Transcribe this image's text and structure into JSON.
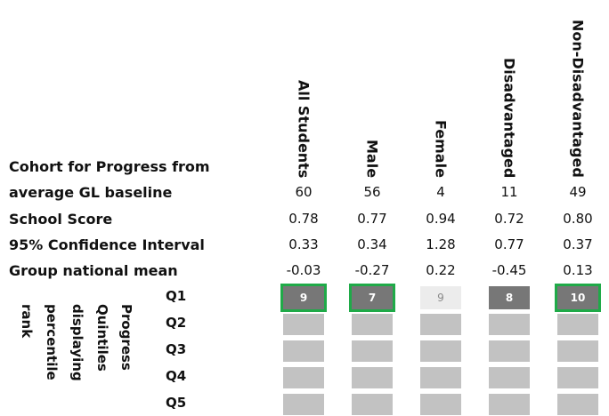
{
  "columns": [
    {
      "key": "all",
      "header": "All Students",
      "cohort": "60",
      "score": "0.78",
      "ci": "0.33",
      "mean": "-0.03",
      "rank": "9",
      "shade": "dark",
      "highlighted": true
    },
    {
      "key": "male",
      "header": "Male",
      "cohort": "56",
      "score": "0.77",
      "ci": "0.34",
      "mean": "-0.27",
      "rank": "7",
      "shade": "dark",
      "highlighted": true
    },
    {
      "key": "female",
      "header": "Female",
      "cohort": "4",
      "score": "0.94",
      "ci": "1.28",
      "mean": "0.22",
      "rank": "9",
      "shade": "light",
      "highlighted": false
    },
    {
      "key": "dis",
      "header": "Disadvantaged",
      "cohort": "11",
      "score": "0.72",
      "ci": "0.77",
      "mean": "-0.45",
      "rank": "8",
      "shade": "dark",
      "highlighted": false
    },
    {
      "key": "nondis",
      "header": "Non-Disadvantaged",
      "cohort": "49",
      "score": "0.80",
      "ci": "0.37",
      "mean": "0.13",
      "rank": "10",
      "shade": "dark",
      "highlighted": true
    }
  ],
  "row_labels": {
    "cohort_line1": "Cohort for Progress from",
    "cohort_line2": "average GL baseline",
    "score": "School Score",
    "ci": "95% Confidence Interval",
    "mean": "Group national mean"
  },
  "quintiles": [
    "Q1",
    "Q2",
    "Q3",
    "Q4",
    "Q5"
  ],
  "side_label": [
    "Progress",
    "Quintiles",
    "displaying",
    "percentile",
    "rank"
  ],
  "colors": {
    "highlight": "#1faa48",
    "box": "#c2c2c2",
    "dark": "#777777",
    "light": "#ececec"
  }
}
